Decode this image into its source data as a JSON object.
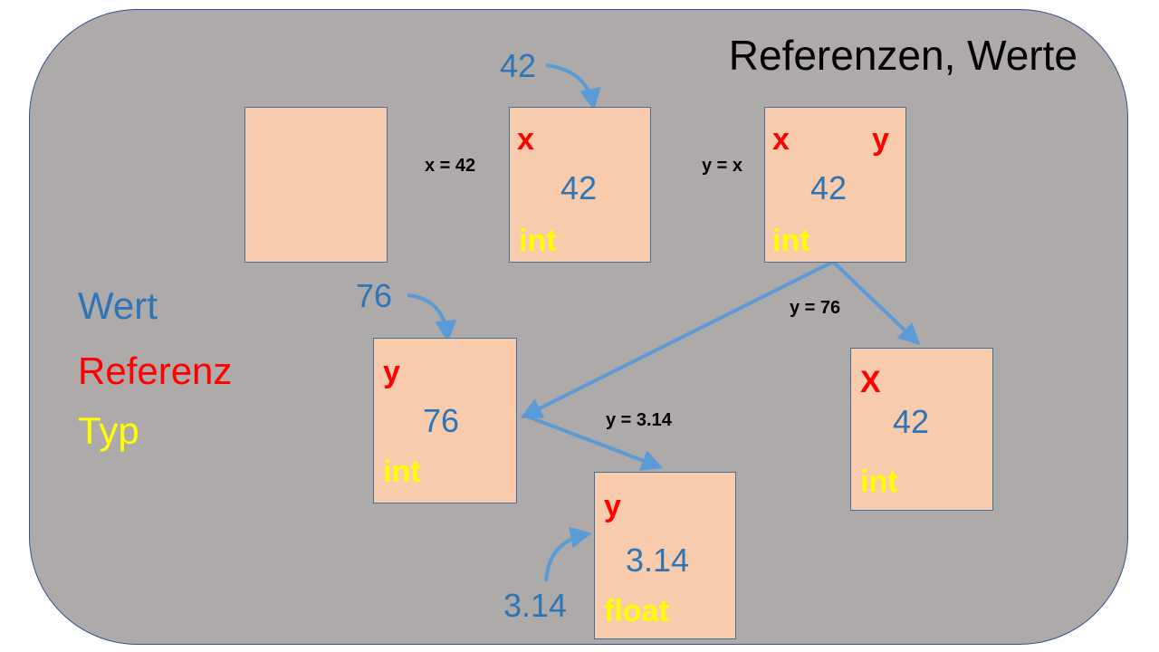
{
  "title": "Referenzen, Werte",
  "colors": {
    "wert": "#2e75b6",
    "referenz": "#ff0000",
    "typ": "#ffff00",
    "background": "#aeaaaa",
    "box": "#f8cbad",
    "arrow": "#5b9bd5"
  },
  "legend": {
    "wert": "Wert",
    "referenz": "Referenz",
    "typ": "Typ"
  },
  "assignments": {
    "x42": "x = 42",
    "yx": "y = x",
    "y76": "y = 76",
    "y314": "y = 3.14"
  },
  "literals": {
    "l42": "42",
    "l76": "76",
    "l314": "3.14"
  },
  "boxes": {
    "empty": {},
    "box_x": {
      "ref": "x",
      "value": "42",
      "type": "int"
    },
    "box_xy": {
      "ref_x": "x",
      "ref_y": "y",
      "value": "42",
      "type": "int"
    },
    "box_y76": {
      "ref": "y",
      "value": "76",
      "type": "int"
    },
    "box_X42": {
      "ref": "X",
      "value": "42",
      "type": "int"
    },
    "box_y314": {
      "ref": "y",
      "value": "3.14",
      "type": "float"
    }
  }
}
